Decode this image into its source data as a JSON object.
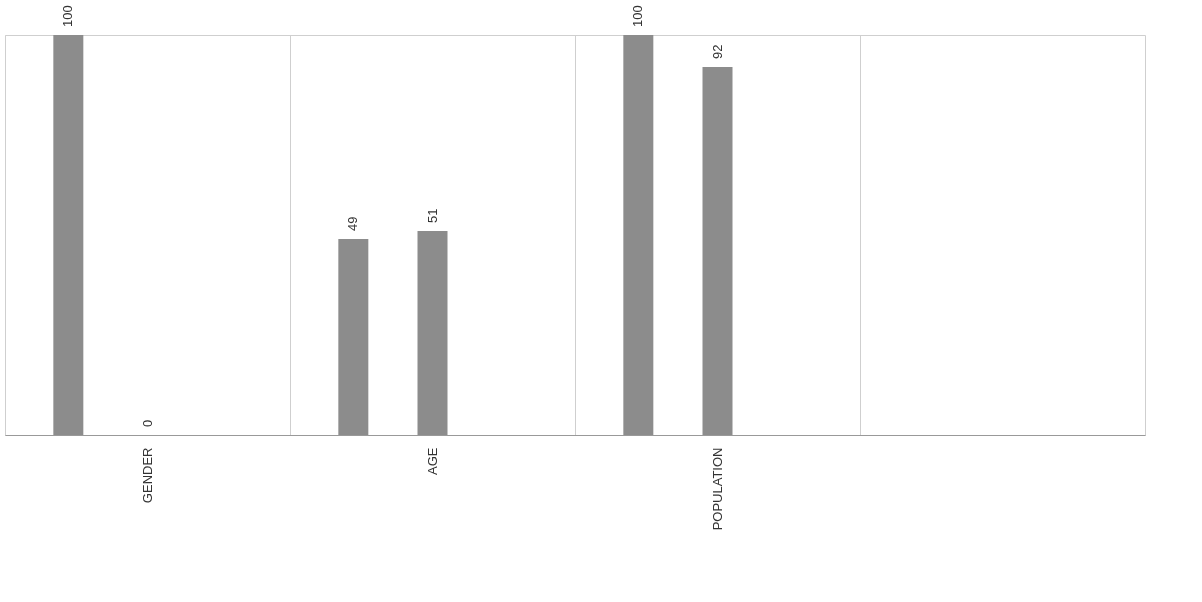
{
  "chart_data": {
    "type": "bar",
    "categories": [
      "GENDER",
      "AGE",
      "POPULATION",
      null
    ],
    "series": [
      {
        "color": "#8c8c8c",
        "values": [
          100,
          49,
          100,
          null
        ]
      },
      {
        "color": "#8c8c8c",
        "values": [
          0,
          51,
          92,
          null
        ]
      },
      {
        "color": "#8c8c8c",
        "values": [
          null,
          null,
          null,
          null
        ]
      }
    ],
    "data_labels": true,
    "grid": "x",
    "tick_labels": "x",
    "legend": false
  }
}
